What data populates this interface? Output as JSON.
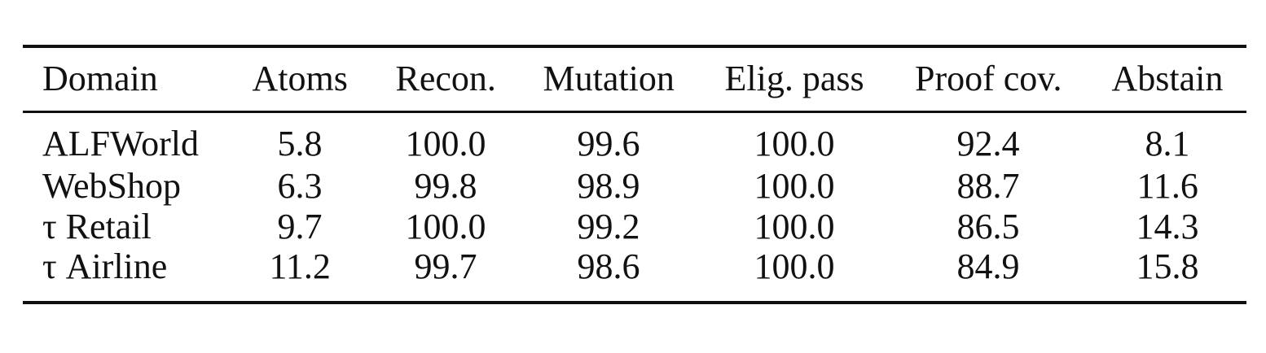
{
  "table": {
    "header": [
      "Domain",
      "Atoms",
      "Recon.",
      "Mutation",
      "Elig. pass",
      "Proof cov.",
      "Abstain"
    ],
    "rows": [
      [
        "ALFWorld",
        "5.8",
        "100.0",
        "99.6",
        "100.0",
        "92.4",
        "8.1"
      ],
      [
        "WebShop",
        "6.3",
        "99.8",
        "98.9",
        "100.0",
        "88.7",
        "11.6"
      ],
      [
        "τ Retail",
        "9.7",
        "100.0",
        "99.2",
        "100.0",
        "86.5",
        "14.3"
      ],
      [
        "τ Airline",
        "11.2",
        "99.7",
        "98.6",
        "100.0",
        "84.9",
        "15.8"
      ]
    ]
  }
}
